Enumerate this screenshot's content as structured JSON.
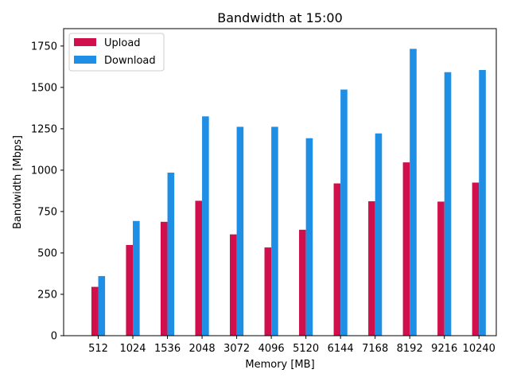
{
  "chart_data": {
    "type": "bar",
    "title": "Bandwidth at 15:00",
    "xlabel": "Memory [MB]",
    "ylabel": "Bandwidth [Mbps]",
    "categories": [
      "512",
      "1024",
      "1536",
      "2048",
      "3072",
      "4096",
      "5120",
      "6144",
      "7168",
      "8192",
      "9216",
      "10240"
    ],
    "series": [
      {
        "name": "Upload",
        "color": "#d0104c",
        "values": [
          295,
          548,
          688,
          815,
          612,
          533,
          640,
          920,
          812,
          1047,
          810,
          925
        ]
      },
      {
        "name": "Download",
        "color": "#1f8fe5",
        "values": [
          360,
          693,
          985,
          1325,
          1262,
          1262,
          1193,
          1487,
          1222,
          1733,
          1592,
          1605
        ]
      }
    ],
    "ylim": [
      0,
      1855
    ],
    "yticks": [
      0,
      250,
      500,
      750,
      1000,
      1250,
      1500,
      1750
    ],
    "grid": false,
    "legend_position": "top-left"
  }
}
